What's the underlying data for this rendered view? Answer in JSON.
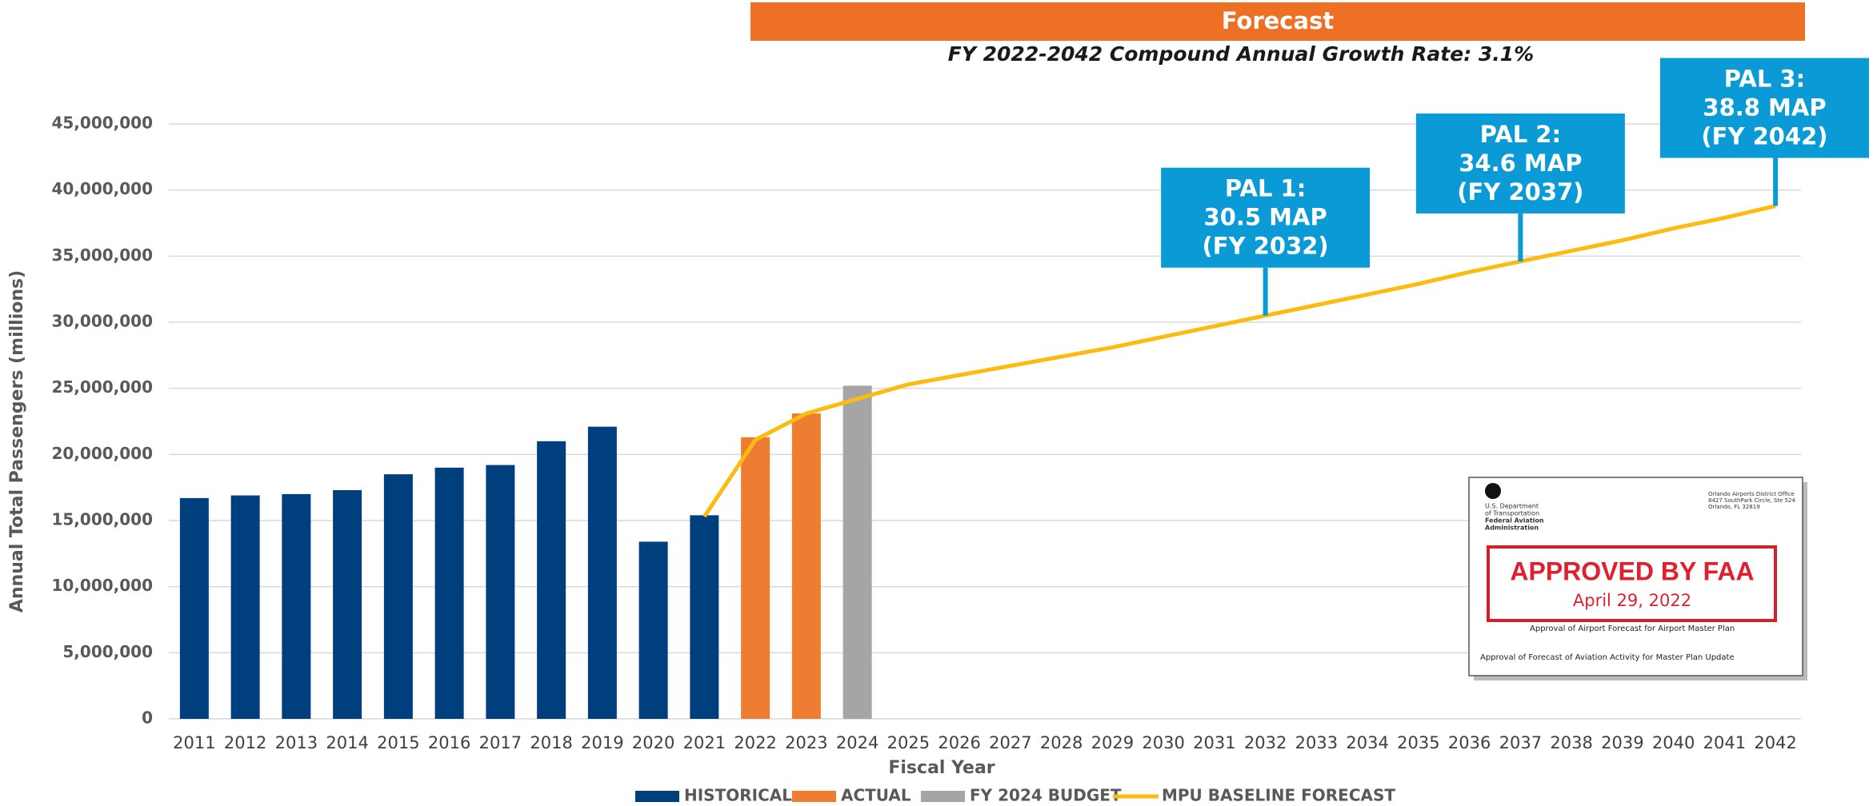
{
  "chart_data": {
    "type": "bar",
    "forecast_banner": "Forecast",
    "subtitle": "FY 2022-2042 Compound Annual Growth Rate: 3.1%",
    "x_label": "Fiscal Year",
    "y_label": "Annual Total Passengers (millions)",
    "categories": [
      "2011",
      "2012",
      "2013",
      "2014",
      "2015",
      "2016",
      "2017",
      "2018",
      "2019",
      "2020",
      "2021",
      "2022",
      "2023",
      "2024",
      "2025",
      "2026",
      "2027",
      "2028",
      "2029",
      "2030",
      "2031",
      "2032",
      "2033",
      "2034",
      "2035",
      "2036",
      "2037",
      "2038",
      "2039",
      "2040",
      "2041",
      "2042"
    ],
    "series": [
      {
        "name": "HISTORICAL",
        "type": "bar",
        "color": "#003f7d",
        "values": [
          16700000,
          16900000,
          17000000,
          17300000,
          18500000,
          19000000,
          19200000,
          21000000,
          22100000,
          13400000,
          15400000,
          null,
          null,
          null,
          null,
          null,
          null,
          null,
          null,
          null,
          null,
          null,
          null,
          null,
          null,
          null,
          null,
          null,
          null,
          null,
          null,
          null
        ]
      },
      {
        "name": "ACTUAL",
        "type": "bar",
        "color": "#ed7d31",
        "values": [
          null,
          null,
          null,
          null,
          null,
          null,
          null,
          null,
          null,
          null,
          null,
          21300000,
          23100000,
          null,
          null,
          null,
          null,
          null,
          null,
          null,
          null,
          null,
          null,
          null,
          null,
          null,
          null,
          null,
          null,
          null,
          null,
          null
        ]
      },
      {
        "name": "FY 2024 BUDGET",
        "type": "bar",
        "color": "#a5a5a5",
        "values": [
          null,
          null,
          null,
          null,
          null,
          null,
          null,
          null,
          null,
          null,
          null,
          null,
          null,
          25200000,
          null,
          null,
          null,
          null,
          null,
          null,
          null,
          null,
          null,
          null,
          null,
          null,
          null,
          null,
          null,
          null,
          null,
          null
        ]
      },
      {
        "name": "MPU BASELINE FORECAST",
        "type": "line",
        "color": "#fbbc0f",
        "values": [
          null,
          null,
          null,
          null,
          null,
          null,
          null,
          null,
          null,
          null,
          15300000,
          21100000,
          23100000,
          24200000,
          25300000,
          26000000,
          26700000,
          27400000,
          28100000,
          28900000,
          29700000,
          30500000,
          31300000,
          32100000,
          32900000,
          33800000,
          34600000,
          35400000,
          36200000,
          37100000,
          37900000,
          38800000
        ]
      }
    ],
    "ylim": [
      0,
      45000000
    ],
    "yticks": [
      0,
      {
        "value": 5000000,
        "label": "5,000,000"
      },
      {
        "value": 10000000,
        "label": "10,000,000"
      },
      {
        "value": 15000000,
        "label": "15,000,000"
      },
      {
        "value": 20000000,
        "label": "20,000,000"
      },
      {
        "value": 25000000,
        "label": "25,000,000"
      },
      {
        "value": 30000000,
        "label": "30,000,000"
      },
      {
        "value": 35000000,
        "label": "35,000,000"
      },
      {
        "value": 40000000,
        "label": "40,000,000"
      },
      {
        "value": 45000000,
        "label": "45,000,000"
      }
    ],
    "grid": true,
    "annotations": [
      {
        "x": "2032",
        "lines": [
          "PAL 1:",
          "30.5 MAP",
          "(FY 2032)"
        ]
      },
      {
        "x": "2037",
        "lines": [
          "PAL 2:",
          "34.6 MAP",
          "(FY 2037)"
        ]
      },
      {
        "x": "2042",
        "lines": [
          "PAL 3:",
          "38.8 MAP",
          "(FY 2042)"
        ]
      }
    ],
    "inset": {
      "stamp": "APPROVED BY FAA",
      "date": "April 29, 2022",
      "agency": [
        "U.S. Department",
        "of Transportation",
        "Federal Aviation",
        "Administration"
      ],
      "office": [
        "Orlando Airports District Office",
        "8427 SouthPark Circle, Ste 524",
        "Orlando, FL 32819"
      ],
      "subject": "Approval of Airport Forecast for Airport Master Plan",
      "heading": "Approval of Forecast of Aviation Activity for Master Plan Update"
    }
  }
}
